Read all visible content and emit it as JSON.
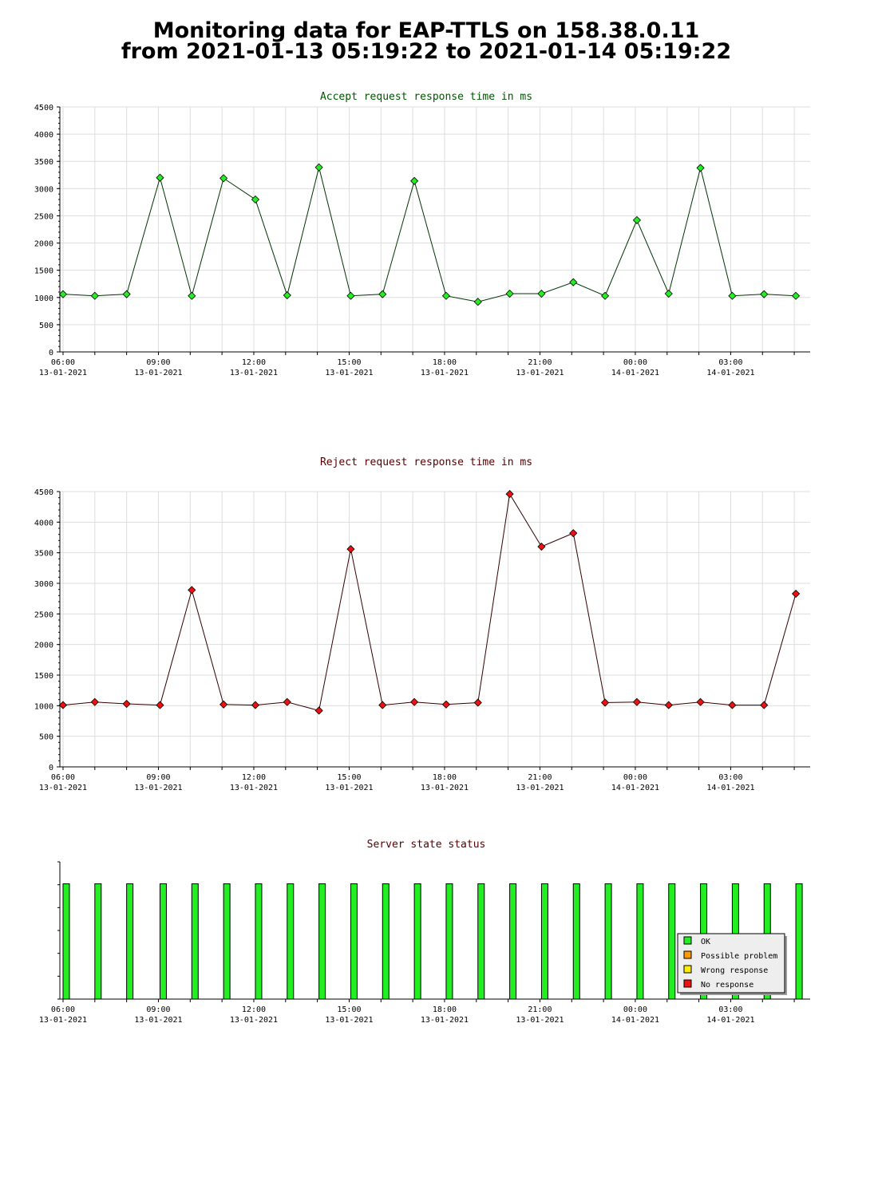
{
  "page": {
    "title_line1": "Monitoring data for EAP-TTLS on 158.38.0.11",
    "title_line2": "from 2021-01-13 05:19:22 to 2021-01-14 05:19:22"
  },
  "chart_data": [
    {
      "type": "line",
      "title": "Accept request response time in ms",
      "title_color": "#005500",
      "line_color": "#003300",
      "marker_color": "#22ee22",
      "grid": true,
      "ylim": [
        0,
        4500
      ],
      "yticks": [
        "0",
        "500",
        "1000",
        "1500",
        "2000",
        "2500",
        "3000",
        "3500",
        "4000",
        "4500"
      ],
      "xlim": [
        5.9,
        29.5
      ],
      "xticks": [
        {
          "time": "06:00",
          "date": "13-01-2021"
        },
        {
          "time": "09:00",
          "date": "13-01-2021"
        },
        {
          "time": "12:00",
          "date": "13-01-2021"
        },
        {
          "time": "15:00",
          "date": "13-01-2021"
        },
        {
          "time": "18:00",
          "date": "13-01-2021"
        },
        {
          "time": "21:00",
          "date": "13-01-2021"
        },
        {
          "time": "00:00",
          "date": "14-01-2021"
        },
        {
          "time": "03:00",
          "date": "14-01-2021"
        }
      ],
      "x": [
        6.0,
        7.0,
        8.0,
        9.05,
        10.05,
        11.05,
        12.05,
        13.05,
        14.05,
        15.05,
        16.05,
        17.05,
        18.05,
        19.05,
        20.05,
        21.05,
        22.05,
        23.05,
        24.05,
        25.05,
        26.05,
        27.05,
        28.05,
        29.05
      ],
      "values": [
        1060,
        1030,
        1060,
        3200,
        1030,
        3190,
        2800,
        1040,
        3390,
        1030,
        1060,
        3140,
        1030,
        920,
        1070,
        1070,
        1280,
        1030,
        2420,
        1070,
        3380,
        1030,
        1060,
        1030
      ]
    },
    {
      "type": "line",
      "title": "Reject request response time in ms",
      "title_color": "#550000",
      "line_color": "#330000",
      "marker_color": "#ee1111",
      "grid": true,
      "ylim": [
        0,
        4500
      ],
      "yticks": [
        "0",
        "500",
        "1000",
        "1500",
        "2000",
        "2500",
        "3000",
        "3500",
        "4000",
        "4500"
      ],
      "xlim": [
        5.9,
        29.5
      ],
      "xticks": [
        {
          "time": "06:00",
          "date": "13-01-2021"
        },
        {
          "time": "09:00",
          "date": "13-01-2021"
        },
        {
          "time": "12:00",
          "date": "13-01-2021"
        },
        {
          "time": "15:00",
          "date": "13-01-2021"
        },
        {
          "time": "18:00",
          "date": "13-01-2021"
        },
        {
          "time": "21:00",
          "date": "13-01-2021"
        },
        {
          "time": "00:00",
          "date": "14-01-2021"
        },
        {
          "time": "03:00",
          "date": "14-01-2021"
        }
      ],
      "x": [
        6.0,
        7.0,
        8.0,
        9.05,
        10.05,
        11.05,
        12.05,
        13.05,
        14.05,
        15.05,
        16.05,
        17.05,
        18.05,
        19.05,
        20.05,
        21.05,
        22.05,
        23.05,
        24.05,
        25.05,
        26.05,
        27.05,
        28.05,
        29.05
      ],
      "values": [
        1010,
        1060,
        1030,
        1010,
        2890,
        1020,
        1010,
        1060,
        920,
        3560,
        1010,
        1060,
        1020,
        1050,
        4460,
        3600,
        3820,
        1050,
        1060,
        1010,
        1060,
        1010,
        1010,
        2830
      ]
    },
    {
      "type": "bar",
      "title": "Server state status",
      "title_color": "#550000",
      "bar_color": "#22ee22",
      "ylim": [
        0,
        1
      ],
      "xlim": [
        5.9,
        29.5
      ],
      "xticks": [
        {
          "time": "06:00",
          "date": "13-01-2021"
        },
        {
          "time": "09:00",
          "date": "13-01-2021"
        },
        {
          "time": "12:00",
          "date": "13-01-2021"
        },
        {
          "time": "15:00",
          "date": "13-01-2021"
        },
        {
          "time": "18:00",
          "date": "13-01-2021"
        },
        {
          "time": "21:00",
          "date": "13-01-2021"
        },
        {
          "time": "00:00",
          "date": "14-01-2021"
        },
        {
          "time": "03:00",
          "date": "14-01-2021"
        }
      ],
      "x": [
        6.0,
        7.0,
        8.0,
        9.05,
        10.05,
        11.05,
        12.05,
        13.05,
        14.05,
        15.05,
        16.05,
        17.05,
        18.05,
        19.05,
        20.05,
        21.05,
        22.05,
        23.05,
        24.05,
        25.05,
        26.05,
        27.05,
        28.05,
        29.05
      ],
      "status": [
        "OK",
        "OK",
        "OK",
        "OK",
        "OK",
        "OK",
        "OK",
        "OK",
        "OK",
        "OK",
        "OK",
        "OK",
        "OK",
        "OK",
        "OK",
        "OK",
        "OK",
        "OK",
        "OK",
        "OK",
        "OK",
        "OK",
        "OK",
        "OK"
      ],
      "value_fraction": 0.84,
      "legend_placement": "bottom-right",
      "legend": [
        {
          "label": "OK",
          "color": "#22ee22"
        },
        {
          "label": "Possible problem",
          "color": "#ff9900"
        },
        {
          "label": "Wrong response",
          "color": "#ffee00"
        },
        {
          "label": "No response",
          "color": "#ee1111"
        }
      ]
    }
  ]
}
